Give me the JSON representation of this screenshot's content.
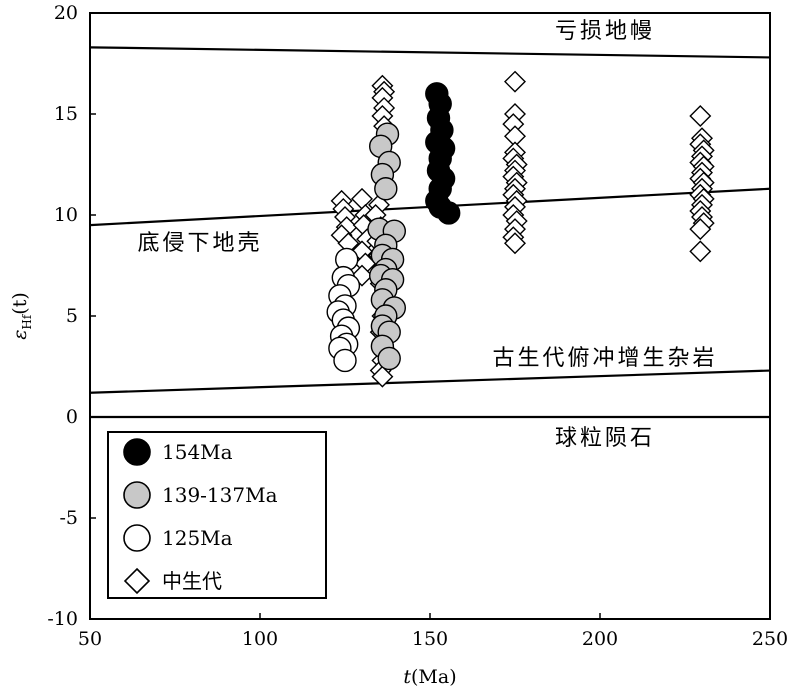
{
  "chart_data": {
    "type": "scatter",
    "title": "",
    "xlabel": {
      "main": "t",
      "unit": "(Ma)"
    },
    "ylabel": {
      "main": "ε",
      "sub": "Hf",
      "paren": "(t)"
    },
    "xlim": [
      50,
      250
    ],
    "ylim": [
      -10,
      20
    ],
    "x_ticks": [
      50,
      100,
      150,
      200,
      250
    ],
    "y_ticks": [
      -10,
      -5,
      0,
      5,
      10,
      15,
      20
    ],
    "reference_lines": [
      {
        "name": "depleted-mantle",
        "label": "亏损地幔",
        "x": [
          50,
          250
        ],
        "y": [
          18.3,
          17.8
        ]
      },
      {
        "name": "lower-crust",
        "label": "底侵下地壳",
        "x": [
          50,
          250
        ],
        "y": [
          9.5,
          11.3
        ]
      },
      {
        "name": "accretionary-complex",
        "label": "古生代俯冲增生杂岩",
        "x": [
          50,
          250
        ],
        "y": [
          1.2,
          2.3
        ]
      },
      {
        "name": "chondrite",
        "label": "球粒陨石",
        "x": [
          50,
          250
        ],
        "y": [
          0,
          0
        ]
      }
    ],
    "series": [
      {
        "name": "154Ma",
        "marker": "circle",
        "fill": "#000000",
        "points": [
          [
            152,
            16
          ],
          [
            153,
            15.5
          ],
          [
            152.5,
            14.8
          ],
          [
            153.5,
            14.2
          ],
          [
            152,
            13.6
          ],
          [
            154,
            13.3
          ],
          [
            153,
            12.8
          ],
          [
            152.5,
            12.2
          ],
          [
            154,
            11.8
          ],
          [
            153,
            11.3
          ],
          [
            152,
            10.7
          ],
          [
            153,
            10.4
          ],
          [
            155.5,
            10.1
          ]
        ]
      },
      {
        "name": "139-137Ma",
        "marker": "circle",
        "fill": "#c8c8c8",
        "points": [
          [
            137.5,
            14
          ],
          [
            135.5,
            13.4
          ],
          [
            138,
            12.6
          ],
          [
            136,
            12
          ],
          [
            137,
            11.3
          ],
          [
            135,
            9.3
          ],
          [
            139.5,
            9.2
          ],
          [
            137,
            8.5
          ],
          [
            136,
            8
          ],
          [
            139,
            7.8
          ],
          [
            137,
            7.3
          ],
          [
            135.5,
            7
          ],
          [
            139,
            6.8
          ],
          [
            137,
            6.3
          ],
          [
            136,
            5.8
          ],
          [
            139.5,
            5.4
          ],
          [
            137,
            5
          ],
          [
            136,
            4.5
          ],
          [
            138,
            4.2
          ],
          [
            136,
            3.5
          ],
          [
            138,
            2.9
          ]
        ]
      },
      {
        "name": "125Ma",
        "marker": "circle",
        "fill": "#ffffff",
        "points": [
          [
            125.5,
            7.8
          ],
          [
            124.5,
            6.9
          ],
          [
            126,
            6.5
          ],
          [
            123.5,
            6
          ],
          [
            125,
            5.5
          ],
          [
            123,
            5.2
          ],
          [
            124.5,
            4.8
          ],
          [
            126,
            4.4
          ],
          [
            124,
            4
          ],
          [
            125.5,
            3.6
          ],
          [
            123.5,
            3.4
          ],
          [
            125,
            2.8
          ]
        ]
      },
      {
        "name": "中生代",
        "marker": "diamond",
        "fill": "#ffffff",
        "points": [
          [
            124,
            10.7
          ],
          [
            124.5,
            10.3
          ],
          [
            125,
            9.9
          ],
          [
            125.5,
            9.4
          ],
          [
            124,
            9
          ],
          [
            126,
            8.6
          ],
          [
            130,
            10.8
          ],
          [
            131,
            10
          ],
          [
            130.5,
            9.5
          ],
          [
            131.5,
            8.8
          ],
          [
            130,
            8.2
          ],
          [
            131,
            7.6
          ],
          [
            130,
            7
          ],
          [
            135,
            10.5
          ],
          [
            134,
            10
          ],
          [
            135.5,
            9.4
          ],
          [
            134.5,
            8.7
          ],
          [
            135,
            8
          ],
          [
            136,
            16.4
          ],
          [
            136.5,
            16.1
          ],
          [
            136,
            15.8
          ],
          [
            136.5,
            15.3
          ],
          [
            136,
            14.9
          ],
          [
            136.5,
            14.4
          ],
          [
            136,
            7.4
          ],
          [
            135.5,
            6.6
          ],
          [
            136.5,
            5.8
          ],
          [
            136,
            5
          ],
          [
            135.5,
            4.2
          ],
          [
            136.5,
            3.4
          ],
          [
            136,
            2.8
          ],
          [
            135.5,
            2.3
          ],
          [
            136,
            2
          ],
          [
            175,
            16.6
          ],
          [
            175,
            15
          ],
          [
            174.5,
            14.5
          ],
          [
            175,
            13.9
          ],
          [
            175,
            13.1
          ],
          [
            174.5,
            12.8
          ],
          [
            175.5,
            12.5
          ],
          [
            175,
            12.2
          ],
          [
            174.5,
            11.9
          ],
          [
            175.5,
            11.6
          ],
          [
            175,
            11.3
          ],
          [
            174.5,
            11
          ],
          [
            175.5,
            10.7
          ],
          [
            175,
            10.4
          ],
          [
            174.5,
            10
          ],
          [
            175.5,
            9.7
          ],
          [
            175,
            9.3
          ],
          [
            174.5,
            8.9
          ],
          [
            175,
            8.6
          ],
          [
            229.5,
            14.9
          ],
          [
            230,
            13.8
          ],
          [
            229.5,
            13.5
          ],
          [
            230.5,
            13.2
          ],
          [
            230,
            12.9
          ],
          [
            229.5,
            12.6
          ],
          [
            230.5,
            12.4
          ],
          [
            230,
            12.1
          ],
          [
            229.5,
            11.8
          ],
          [
            230.5,
            11.6
          ],
          [
            230,
            11.3
          ],
          [
            229.5,
            11
          ],
          [
            230.5,
            10.8
          ],
          [
            230,
            10.5
          ],
          [
            229.5,
            10.2
          ],
          [
            230,
            9.9
          ],
          [
            230.5,
            9.6
          ],
          [
            229.5,
            9.3
          ],
          [
            229.5,
            8.2
          ]
        ]
      }
    ],
    "legend": {
      "placement": "bottom-left"
    }
  }
}
